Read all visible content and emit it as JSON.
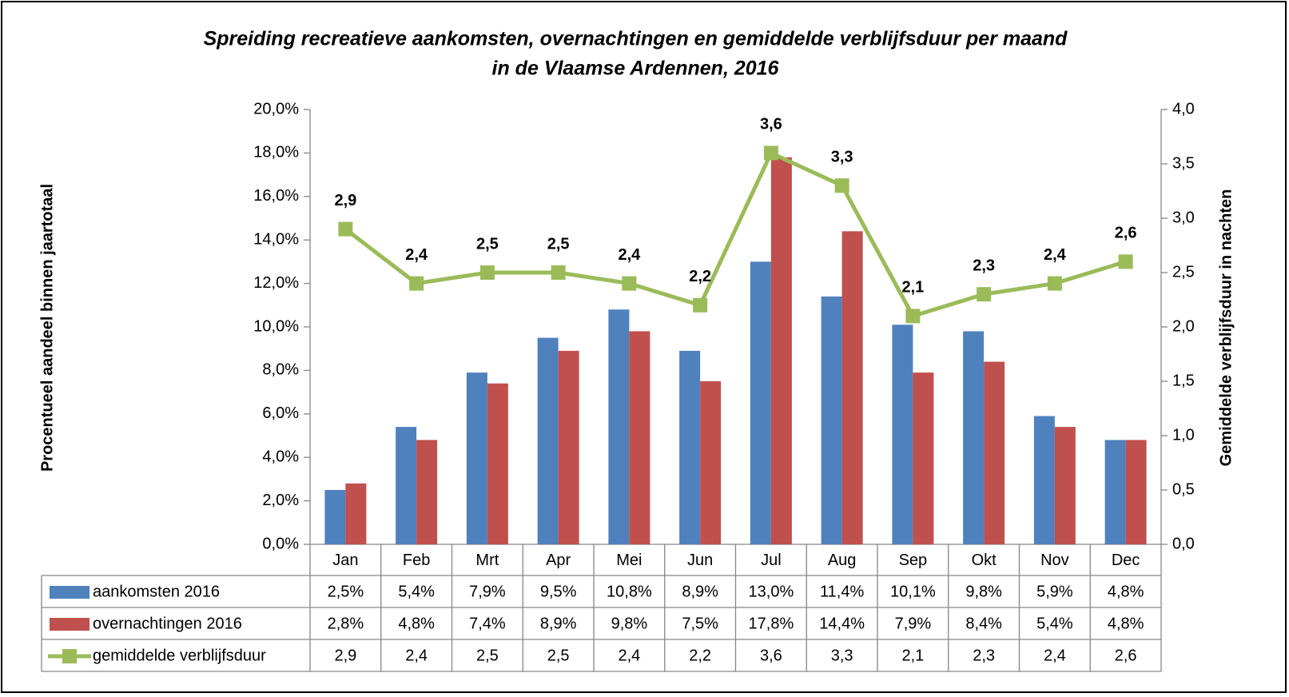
{
  "chart_data": {
    "type": "bar-line",
    "title": [
      "Spreiding recreatieve aankomsten, overnachtingen en gemiddelde verblijfsduur per maand",
      "in de Vlaamse Ardennen, 2016"
    ],
    "ylabel": "Procentueel aandeel binnen jaartotaal",
    "y2label": "Gemiddelde verblijfsduur in nachten",
    "categories": [
      "Jan",
      "Feb",
      "Mrt",
      "Apr",
      "Mei",
      "Jun",
      "Jul",
      "Aug",
      "Sep",
      "Okt",
      "Nov",
      "Dec"
    ],
    "series": [
      {
        "name": "aankomsten 2016",
        "type": "bar",
        "color": "#4f81bd",
        "values": [
          2.5,
          5.4,
          7.9,
          9.5,
          10.8,
          8.9,
          13.0,
          11.4,
          10.1,
          9.8,
          5.9,
          4.8
        ],
        "value_labels": [
          "2,5%",
          "5,4%",
          "7,9%",
          "9,5%",
          "10,8%",
          "8,9%",
          "13,0%",
          "11,4%",
          "10,1%",
          "9,8%",
          "5,9%",
          "4,8%"
        ]
      },
      {
        "name": "overnachtingen 2016",
        "type": "bar",
        "color": "#c0504d",
        "values": [
          2.8,
          4.8,
          7.4,
          8.9,
          9.8,
          7.5,
          17.8,
          14.4,
          7.9,
          8.4,
          5.4,
          4.8
        ],
        "value_labels": [
          "2,8%",
          "4,8%",
          "7,4%",
          "8,9%",
          "9,8%",
          "7,5%",
          "17,8%",
          "14,4%",
          "7,9%",
          "8,4%",
          "5,4%",
          "4,8%"
        ]
      },
      {
        "name": "gemiddelde verblijfsduur",
        "type": "line",
        "axis": "y2",
        "color": "#9bbb59",
        "values": [
          2.9,
          2.4,
          2.5,
          2.5,
          2.4,
          2.2,
          3.6,
          3.3,
          2.1,
          2.3,
          2.4,
          2.6
        ],
        "value_labels": [
          "2,9",
          "2,4",
          "2,5",
          "2,5",
          "2,4",
          "2,2",
          "3,6",
          "3,3",
          "2,1",
          "2,3",
          "2,4",
          "2,6"
        ]
      }
    ],
    "ylim": [
      0,
      20
    ],
    "yticks": [
      {
        "value": 0,
        "label": "0,0%"
      },
      {
        "value": 2,
        "label": "2,0%"
      },
      {
        "value": 4,
        "label": "4,0%"
      },
      {
        "value": 6,
        "label": "6,0%"
      },
      {
        "value": 8,
        "label": "8,0%"
      },
      {
        "value": 10,
        "label": "10,0%"
      },
      {
        "value": 12,
        "label": "12,0%"
      },
      {
        "value": 14,
        "label": "14,0%"
      },
      {
        "value": 16,
        "label": "16,0%"
      },
      {
        "value": 18,
        "label": "18,0%"
      },
      {
        "value": 20,
        "label": "20,0%"
      }
    ],
    "y2lim": [
      0,
      4
    ],
    "y2ticks": [
      {
        "value": 0,
        "label": "0,0"
      },
      {
        "value": 0.5,
        "label": "0,5"
      },
      {
        "value": 1,
        "label": "1,0"
      },
      {
        "value": 1.5,
        "label": "1,5"
      },
      {
        "value": 2,
        "label": "2,0"
      },
      {
        "value": 2.5,
        "label": "2,5"
      },
      {
        "value": 3,
        "label": "3,0"
      },
      {
        "value": 3.5,
        "label": "3,5"
      },
      {
        "value": 4,
        "label": "4,0"
      }
    ],
    "grid": false
  }
}
